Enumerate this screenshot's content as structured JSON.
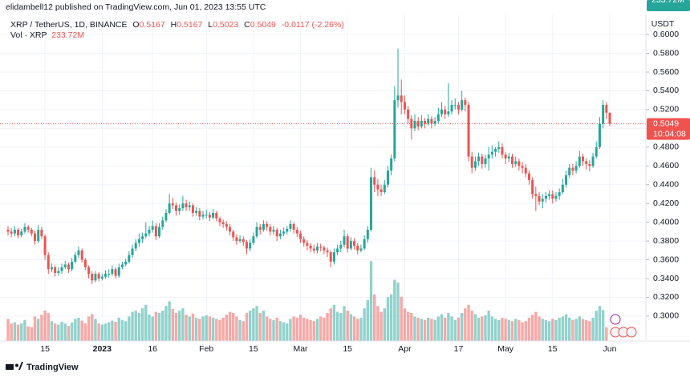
{
  "header": {
    "publisher": "elidambell12 published on TradingView.com, Jun 01, 2023 13:55 UTC",
    "footer": "TradingView"
  },
  "chart_data": {
    "type": "candlestick",
    "title": "XRP / TetherUS, 1D, BINANCE",
    "legend": {
      "o_label": "O",
      "open": "0.5167",
      "h_label": "H",
      "high": "0.5167",
      "l_label": "L",
      "low": "0.5023",
      "c_label": "C",
      "close": "0.5049",
      "change": "-0.0117 (-2.26%)"
    },
    "volume_legend": {
      "label": "Vol · XRP",
      "value": "233.72M"
    },
    "axis_unit": "USDT",
    "last_price_label": "0.5049",
    "countdown": "10:04:08",
    "volume_label": "233.72M",
    "up_color": "#26a69a",
    "down_color": "#ef5350",
    "grid": true,
    "ylim": [
      0.2735,
      0.6214
    ],
    "volume_ylim": [
      0,
      5600
    ],
    "yticks": [
      {
        "value": 0.3,
        "label": "0.3000"
      },
      {
        "value": 0.32,
        "label": "0.3200"
      },
      {
        "value": 0.34,
        "label": "0.3400"
      },
      {
        "value": 0.36,
        "label": "0.3600"
      },
      {
        "value": 0.38,
        "label": "0.3800"
      },
      {
        "value": 0.4,
        "label": "0.4000"
      },
      {
        "value": 0.42,
        "label": "0.4200"
      },
      {
        "value": 0.44,
        "label": "0.4400"
      },
      {
        "value": 0.46,
        "label": "0.4600"
      },
      {
        "value": 0.48,
        "label": "0.4800"
      },
      {
        "value": 0.5,
        "label": "0.5000"
      },
      {
        "value": 0.52,
        "label": "0.5200"
      },
      {
        "value": 0.54,
        "label": "0.5400"
      },
      {
        "value": 0.56,
        "label": "0.5600"
      },
      {
        "value": 0.58,
        "label": "0.5800"
      },
      {
        "value": 0.6,
        "label": "0.6000"
      }
    ],
    "xticks": [
      {
        "value": 11,
        "label": "15"
      },
      {
        "value": 28,
        "label": "2023"
      },
      {
        "value": 43,
        "label": "16"
      },
      {
        "value": 59,
        "label": "Feb"
      },
      {
        "value": 73,
        "label": "15"
      },
      {
        "value": 87,
        "label": "Mar"
      },
      {
        "value": 101,
        "label": "15"
      },
      {
        "value": 118,
        "label": "Apr"
      },
      {
        "value": 134,
        "label": "17"
      },
      {
        "value": 148,
        "label": "May"
      },
      {
        "value": 162,
        "label": "15"
      },
      {
        "value": 179,
        "label": "Jun"
      }
    ],
    "ohlc": [
      [
        0.392,
        0.396,
        0.386,
        0.39
      ],
      [
        0.39,
        0.394,
        0.384,
        0.388
      ],
      [
        0.388,
        0.396,
        0.385,
        0.392
      ],
      [
        0.392,
        0.394,
        0.383,
        0.386
      ],
      [
        0.386,
        0.393,
        0.384,
        0.39
      ],
      [
        0.39,
        0.399,
        0.388,
        0.395
      ],
      [
        0.395,
        0.397,
        0.389,
        0.392
      ],
      [
        0.392,
        0.394,
        0.385,
        0.388
      ],
      [
        0.388,
        0.391,
        0.376,
        0.38
      ],
      [
        0.38,
        0.397,
        0.378,
        0.392
      ],
      [
        0.392,
        0.395,
        0.382,
        0.385
      ],
      [
        0.385,
        0.387,
        0.36,
        0.365
      ],
      [
        0.365,
        0.368,
        0.345,
        0.35
      ],
      [
        0.35,
        0.356,
        0.347,
        0.352
      ],
      [
        0.352,
        0.354,
        0.342,
        0.346
      ],
      [
        0.346,
        0.352,
        0.343,
        0.348
      ],
      [
        0.348,
        0.356,
        0.345,
        0.352
      ],
      [
        0.352,
        0.359,
        0.35,
        0.355
      ],
      [
        0.355,
        0.357,
        0.346,
        0.35
      ],
      [
        0.35,
        0.362,
        0.348,
        0.358
      ],
      [
        0.358,
        0.368,
        0.356,
        0.365
      ],
      [
        0.365,
        0.374,
        0.362,
        0.37
      ],
      [
        0.37,
        0.372,
        0.357,
        0.36
      ],
      [
        0.36,
        0.362,
        0.349,
        0.352
      ],
      [
        0.352,
        0.354,
        0.34,
        0.345
      ],
      [
        0.345,
        0.348,
        0.334,
        0.338
      ],
      [
        0.338,
        0.348,
        0.336,
        0.345
      ],
      [
        0.345,
        0.347,
        0.337,
        0.34
      ],
      [
        0.34,
        0.345,
        0.338,
        0.342
      ],
      [
        0.342,
        0.349,
        0.34,
        0.345
      ],
      [
        0.345,
        0.35,
        0.341,
        0.345
      ],
      [
        0.345,
        0.354,
        0.343,
        0.35
      ],
      [
        0.35,
        0.352,
        0.34,
        0.343
      ],
      [
        0.343,
        0.356,
        0.341,
        0.352
      ],
      [
        0.352,
        0.358,
        0.35,
        0.355
      ],
      [
        0.355,
        0.361,
        0.353,
        0.358
      ],
      [
        0.358,
        0.369,
        0.356,
        0.365
      ],
      [
        0.365,
        0.376,
        0.362,
        0.372
      ],
      [
        0.372,
        0.382,
        0.369,
        0.378
      ],
      [
        0.378,
        0.388,
        0.374,
        0.382
      ],
      [
        0.382,
        0.389,
        0.378,
        0.385
      ],
      [
        0.385,
        0.4,
        0.383,
        0.388
      ],
      [
        0.388,
        0.396,
        0.385,
        0.392
      ],
      [
        0.392,
        0.402,
        0.389,
        0.396
      ],
      [
        0.396,
        0.399,
        0.381,
        0.385
      ],
      [
        0.385,
        0.399,
        0.383,
        0.395
      ],
      [
        0.395,
        0.406,
        0.392,
        0.402
      ],
      [
        0.402,
        0.414,
        0.4,
        0.41
      ],
      [
        0.41,
        0.43,
        0.408,
        0.42
      ],
      [
        0.42,
        0.426,
        0.414,
        0.418
      ],
      [
        0.418,
        0.421,
        0.407,
        0.412
      ],
      [
        0.412,
        0.419,
        0.408,
        0.415
      ],
      [
        0.415,
        0.428,
        0.412,
        0.42
      ],
      [
        0.42,
        0.424,
        0.412,
        0.416
      ],
      [
        0.416,
        0.422,
        0.412,
        0.418
      ],
      [
        0.418,
        0.42,
        0.406,
        0.41
      ],
      [
        0.41,
        0.416,
        0.407,
        0.412
      ],
      [
        0.412,
        0.415,
        0.402,
        0.406
      ],
      [
        0.406,
        0.412,
        0.403,
        0.408
      ],
      [
        0.408,
        0.413,
        0.404,
        0.408
      ],
      [
        0.408,
        0.411,
        0.401,
        0.405
      ],
      [
        0.405,
        0.414,
        0.403,
        0.41
      ],
      [
        0.41,
        0.412,
        0.401,
        0.404
      ],
      [
        0.404,
        0.406,
        0.396,
        0.4
      ],
      [
        0.4,
        0.403,
        0.394,
        0.398
      ],
      [
        0.398,
        0.401,
        0.391,
        0.395
      ],
      [
        0.395,
        0.398,
        0.386,
        0.39
      ],
      [
        0.39,
        0.392,
        0.38,
        0.384
      ],
      [
        0.384,
        0.387,
        0.376,
        0.38
      ],
      [
        0.38,
        0.386,
        0.378,
        0.382
      ],
      [
        0.382,
        0.385,
        0.375,
        0.379
      ],
      [
        0.379,
        0.381,
        0.366,
        0.372
      ],
      [
        0.372,
        0.382,
        0.369,
        0.378
      ],
      [
        0.378,
        0.389,
        0.376,
        0.385
      ],
      [
        0.385,
        0.4,
        0.383,
        0.395
      ],
      [
        0.395,
        0.398,
        0.387,
        0.392
      ],
      [
        0.392,
        0.402,
        0.39,
        0.398
      ],
      [
        0.398,
        0.401,
        0.391,
        0.395
      ],
      [
        0.395,
        0.398,
        0.386,
        0.39
      ],
      [
        0.39,
        0.396,
        0.387,
        0.392
      ],
      [
        0.392,
        0.394,
        0.38,
        0.385
      ],
      [
        0.385,
        0.392,
        0.382,
        0.388
      ],
      [
        0.388,
        0.394,
        0.385,
        0.39
      ],
      [
        0.39,
        0.396,
        0.387,
        0.393
      ],
      [
        0.393,
        0.402,
        0.39,
        0.398
      ],
      [
        0.398,
        0.4,
        0.388,
        0.392
      ],
      [
        0.392,
        0.395,
        0.384,
        0.388
      ],
      [
        0.388,
        0.391,
        0.378,
        0.382
      ],
      [
        0.382,
        0.385,
        0.374,
        0.378
      ],
      [
        0.378,
        0.381,
        0.37,
        0.375
      ],
      [
        0.375,
        0.378,
        0.368,
        0.372
      ],
      [
        0.372,
        0.376,
        0.367,
        0.37
      ],
      [
        0.37,
        0.378,
        0.367,
        0.374
      ],
      [
        0.374,
        0.377,
        0.369,
        0.373
      ],
      [
        0.373,
        0.375,
        0.366,
        0.37
      ],
      [
        0.37,
        0.373,
        0.363,
        0.368
      ],
      [
        0.368,
        0.37,
        0.352,
        0.358
      ],
      [
        0.358,
        0.372,
        0.355,
        0.368
      ],
      [
        0.368,
        0.376,
        0.365,
        0.372
      ],
      [
        0.372,
        0.38,
        0.368,
        0.376
      ],
      [
        0.376,
        0.392,
        0.373,
        0.385
      ],
      [
        0.385,
        0.388,
        0.368,
        0.372
      ],
      [
        0.372,
        0.384,
        0.37,
        0.38
      ],
      [
        0.38,
        0.383,
        0.371,
        0.375
      ],
      [
        0.375,
        0.378,
        0.366,
        0.37
      ],
      [
        0.37,
        0.376,
        0.368,
        0.372
      ],
      [
        0.372,
        0.386,
        0.37,
        0.382
      ],
      [
        0.382,
        0.396,
        0.378,
        0.392
      ],
      [
        0.392,
        0.458,
        0.39,
        0.448
      ],
      [
        0.448,
        0.455,
        0.432,
        0.44
      ],
      [
        0.44,
        0.446,
        0.428,
        0.435
      ],
      [
        0.435,
        0.44,
        0.428,
        0.432
      ],
      [
        0.432,
        0.445,
        0.43,
        0.44
      ],
      [
        0.44,
        0.46,
        0.437,
        0.455
      ],
      [
        0.455,
        0.472,
        0.45,
        0.468
      ],
      [
        0.468,
        0.545,
        0.465,
        0.53
      ],
      [
        0.53,
        0.585,
        0.522,
        0.535
      ],
      [
        0.535,
        0.552,
        0.515,
        0.528
      ],
      [
        0.528,
        0.535,
        0.515,
        0.52
      ],
      [
        0.52,
        0.524,
        0.505,
        0.51
      ],
      [
        0.51,
        0.514,
        0.488,
        0.5
      ],
      [
        0.5,
        0.515,
        0.497,
        0.508
      ],
      [
        0.508,
        0.512,
        0.498,
        0.502
      ],
      [
        0.502,
        0.514,
        0.5,
        0.508
      ],
      [
        0.508,
        0.511,
        0.5,
        0.505
      ],
      [
        0.505,
        0.515,
        0.503,
        0.51
      ],
      [
        0.51,
        0.513,
        0.5,
        0.505
      ],
      [
        0.505,
        0.512,
        0.502,
        0.508
      ],
      [
        0.508,
        0.522,
        0.505,
        0.515
      ],
      [
        0.515,
        0.528,
        0.512,
        0.52
      ],
      [
        0.52,
        0.524,
        0.51,
        0.515
      ],
      [
        0.515,
        0.548,
        0.512,
        0.518
      ],
      [
        0.518,
        0.53,
        0.515,
        0.525
      ],
      [
        0.525,
        0.532,
        0.52,
        0.525
      ],
      [
        0.525,
        0.528,
        0.515,
        0.52
      ],
      [
        0.52,
        0.54,
        0.518,
        0.53
      ],
      [
        0.53,
        0.533,
        0.518,
        0.525
      ],
      [
        0.525,
        0.528,
        0.465,
        0.47
      ],
      [
        0.47,
        0.475,
        0.452,
        0.458
      ],
      [
        0.458,
        0.47,
        0.455,
        0.465
      ],
      [
        0.465,
        0.474,
        0.46,
        0.47
      ],
      [
        0.47,
        0.473,
        0.457,
        0.462
      ],
      [
        0.462,
        0.472,
        0.458,
        0.468
      ],
      [
        0.468,
        0.48,
        0.455,
        0.472
      ],
      [
        0.472,
        0.482,
        0.468,
        0.475
      ],
      [
        0.475,
        0.48,
        0.47,
        0.478
      ],
      [
        0.478,
        0.486,
        0.474,
        0.48
      ],
      [
        0.48,
        0.484,
        0.468,
        0.472
      ],
      [
        0.472,
        0.475,
        0.462,
        0.468
      ],
      [
        0.468,
        0.474,
        0.464,
        0.47
      ],
      [
        0.47,
        0.473,
        0.458,
        0.462
      ],
      [
        0.462,
        0.47,
        0.459,
        0.465
      ],
      [
        0.465,
        0.468,
        0.455,
        0.46
      ],
      [
        0.46,
        0.464,
        0.452,
        0.458
      ],
      [
        0.458,
        0.462,
        0.448,
        0.452
      ],
      [
        0.452,
        0.455,
        0.44,
        0.445
      ],
      [
        0.445,
        0.448,
        0.425,
        0.43
      ],
      [
        0.43,
        0.438,
        0.412,
        0.428
      ],
      [
        0.428,
        0.432,
        0.418,
        0.422
      ],
      [
        0.422,
        0.43,
        0.415,
        0.425
      ],
      [
        0.425,
        0.432,
        0.421,
        0.428
      ],
      [
        0.428,
        0.434,
        0.424,
        0.43
      ],
      [
        0.43,
        0.434,
        0.42,
        0.425
      ],
      [
        0.425,
        0.432,
        0.422,
        0.428
      ],
      [
        0.428,
        0.436,
        0.424,
        0.432
      ],
      [
        0.432,
        0.446,
        0.43,
        0.44
      ],
      [
        0.44,
        0.455,
        0.437,
        0.45
      ],
      [
        0.45,
        0.462,
        0.447,
        0.458
      ],
      [
        0.458,
        0.462,
        0.45,
        0.455
      ],
      [
        0.455,
        0.465,
        0.452,
        0.46
      ],
      [
        0.46,
        0.476,
        0.458,
        0.47
      ],
      [
        0.47,
        0.473,
        0.46,
        0.465
      ],
      [
        0.465,
        0.468,
        0.456,
        0.462
      ],
      [
        0.462,
        0.466,
        0.454,
        0.46
      ],
      [
        0.46,
        0.474,
        0.458,
        0.47
      ],
      [
        0.47,
        0.486,
        0.468,
        0.48
      ],
      [
        0.48,
        0.512,
        0.478,
        0.505
      ],
      [
        0.505,
        0.53,
        0.5,
        0.525
      ],
      [
        0.525,
        0.528,
        0.51,
        0.5167
      ],
      [
        0.5167,
        0.5167,
        0.5023,
        0.5049
      ]
    ],
    "volume": [
      380,
      300,
      320,
      280,
      300,
      360,
      250,
      240,
      420,
      380,
      450,
      520,
      480,
      340,
      300,
      280,
      330,
      300,
      260,
      320,
      380,
      400,
      350,
      300,
      420,
      460,
      380,
      300,
      280,
      300,
      320,
      350,
      330,
      400,
      360,
      340,
      420,
      500,
      520,
      480,
      560,
      620,
      450,
      420,
      500,
      480,
      520,
      600,
      680,
      550,
      480,
      520,
      560,
      450,
      420,
      470,
      400,
      380,
      420,
      440,
      420,
      400,
      380,
      360,
      400,
      450,
      500,
      480,
      420,
      360,
      340,
      480,
      520,
      560,
      600,
      480,
      520,
      420,
      380,
      360,
      400,
      340,
      320,
      300,
      380,
      420,
      400,
      450,
      400,
      380,
      360,
      340,
      380,
      420,
      400,
      480,
      560,
      620,
      500,
      480,
      600,
      520,
      460,
      420,
      380,
      400,
      560,
      700,
      1370,
      800,
      600,
      500,
      560,
      750,
      800,
      1050,
      1000,
      760,
      560,
      500,
      480,
      420,
      400,
      380,
      360,
      400,
      380,
      360,
      420,
      460,
      400,
      480,
      420,
      360,
      400,
      480,
      560,
      620,
      520,
      460,
      400,
      420,
      440,
      520,
      420,
      380,
      360,
      400,
      380,
      360,
      340,
      380,
      360,
      320,
      340,
      400,
      450,
      500,
      420,
      380,
      360,
      340,
      380,
      360,
      400,
      420,
      460,
      400,
      360,
      380,
      420,
      380,
      360,
      340,
      400,
      520,
      600,
      530,
      233.72
    ]
  }
}
